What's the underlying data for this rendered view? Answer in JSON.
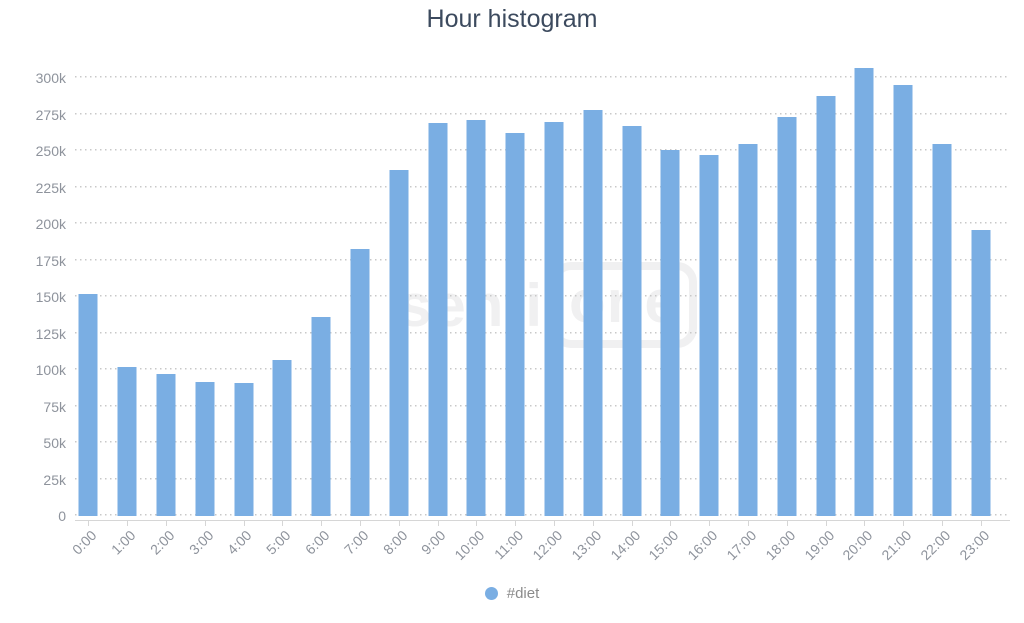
{
  "chart_data": {
    "type": "bar",
    "title": "Hour histogram",
    "categories": [
      "0:00",
      "1:00",
      "2:00",
      "3:00",
      "4:00",
      "5:00",
      "6:00",
      "7:00",
      "8:00",
      "9:00",
      "10:00",
      "11:00",
      "12:00",
      "13:00",
      "14:00",
      "15:00",
      "16:00",
      "17:00",
      "18:00",
      "19:00",
      "20:00",
      "21:00",
      "22:00",
      "23:00"
    ],
    "series": [
      {
        "name": "#diet",
        "values": [
          152000,
          102000,
          97000,
          92000,
          91000,
          107000,
          136000,
          183000,
          237000,
          269000,
          271000,
          262000,
          270000,
          278000,
          267000,
          251000,
          247000,
          255000,
          273000,
          288000,
          307000,
          295000,
          255000,
          196000
        ]
      }
    ],
    "xlabel": "",
    "ylabel": "",
    "ylim": [
      0,
      300000
    ],
    "ytick_values": [
      0,
      25000,
      50000,
      75000,
      100000,
      125000,
      150000,
      175000,
      200000,
      225000,
      250000,
      275000,
      300000
    ],
    "ytick_labels": [
      "0",
      "25k",
      "50k",
      "75k",
      "100k",
      "125k",
      "150k",
      "175k",
      "200k",
      "225k",
      "250k",
      "275k",
      "300k"
    ],
    "grid": "horizontal-dotted",
    "legend_position": "bottom-center"
  },
  "legend": {
    "marker": "circle-icon"
  },
  "watermark": {
    "text_plain": "senti",
    "text_boxed": "one"
  },
  "colors": {
    "bar": "#7aaee3",
    "title": "#3c4a5e",
    "labels": "#8e939c",
    "legend_text": "#8b8b8b",
    "gridline": "#c8c8c8",
    "axis_line": "#d6d6d6",
    "watermark": "#f0f0f1"
  }
}
